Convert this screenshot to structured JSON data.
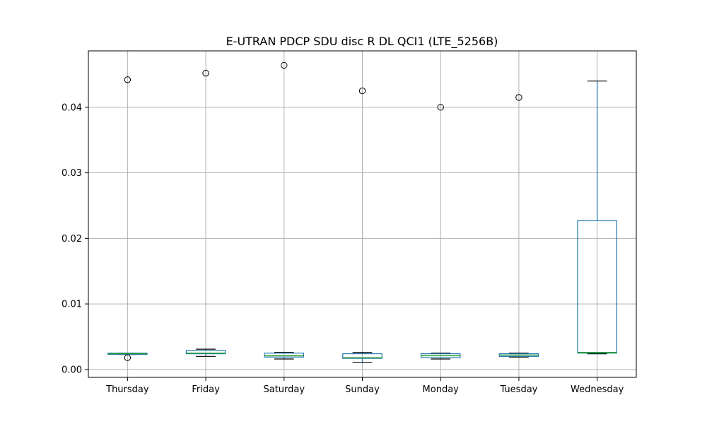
{
  "chart_data": {
    "type": "box",
    "title": "E-UTRAN PDCP SDU disc R DL QCI1 (LTE_5256B)",
    "xlabel": "",
    "ylabel": "",
    "ylim": [
      -0.0012,
      0.0486
    ],
    "yticks": [
      0.0,
      0.01,
      0.02,
      0.03,
      0.04
    ],
    "ytick_labels": [
      "0.00",
      "0.01",
      "0.02",
      "0.03",
      "0.04"
    ],
    "grid": true,
    "categories": [
      "Thursday",
      "Friday",
      "Saturday",
      "Sunday",
      "Monday",
      "Tuesday",
      "Wednesday"
    ],
    "boxes": [
      {
        "whisker_low": 0.0023,
        "q1": 0.0023,
        "median": 0.0024,
        "q3": 0.0025,
        "whisker_high": 0.0025,
        "outliers": [
          0.0442,
          0.0018
        ]
      },
      {
        "whisker_low": 0.002,
        "q1": 0.0024,
        "median": 0.0025,
        "q3": 0.0029,
        "whisker_high": 0.0031,
        "outliers": [
          0.0452
        ]
      },
      {
        "whisker_low": 0.0016,
        "q1": 0.0019,
        "median": 0.0021,
        "q3": 0.0025,
        "whisker_high": 0.0026,
        "outliers": [
          0.0464
        ]
      },
      {
        "whisker_low": 0.0011,
        "q1": 0.0017,
        "median": 0.0018,
        "q3": 0.0024,
        "whisker_high": 0.0026,
        "outliers": [
          0.0425
        ]
      },
      {
        "whisker_low": 0.0016,
        "q1": 0.0018,
        "median": 0.0021,
        "q3": 0.0024,
        "whisker_high": 0.0025,
        "outliers": [
          0.04
        ]
      },
      {
        "whisker_low": 0.0019,
        "q1": 0.002,
        "median": 0.0022,
        "q3": 0.0024,
        "whisker_high": 0.0025,
        "outliers": [
          0.0415
        ]
      },
      {
        "whisker_low": 0.0024,
        "q1": 0.0025,
        "median": 0.0026,
        "q3": 0.0227,
        "whisker_high": 0.044,
        "outliers": []
      }
    ],
    "colors": {
      "box": "#1f77b4",
      "median": "#2ca02c",
      "whisker": "#000000",
      "grid": "#b0b0b0"
    }
  }
}
